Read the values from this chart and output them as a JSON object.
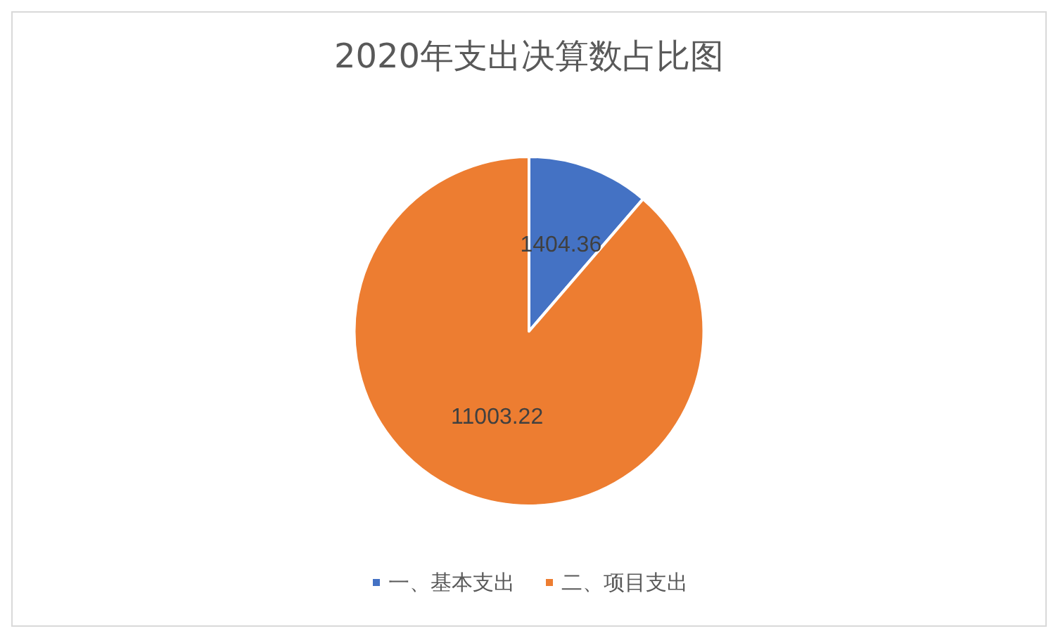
{
  "chart_data": {
    "type": "pie",
    "title": "2020年支出决算数占比图",
    "categories": [
      "一、基本支出",
      "二、项目支出"
    ],
    "values": [
      1404.36,
      11003.22
    ],
    "colors": [
      "#4472c4",
      "#ed7d31"
    ],
    "data_labels": true,
    "legend": "bottom"
  }
}
